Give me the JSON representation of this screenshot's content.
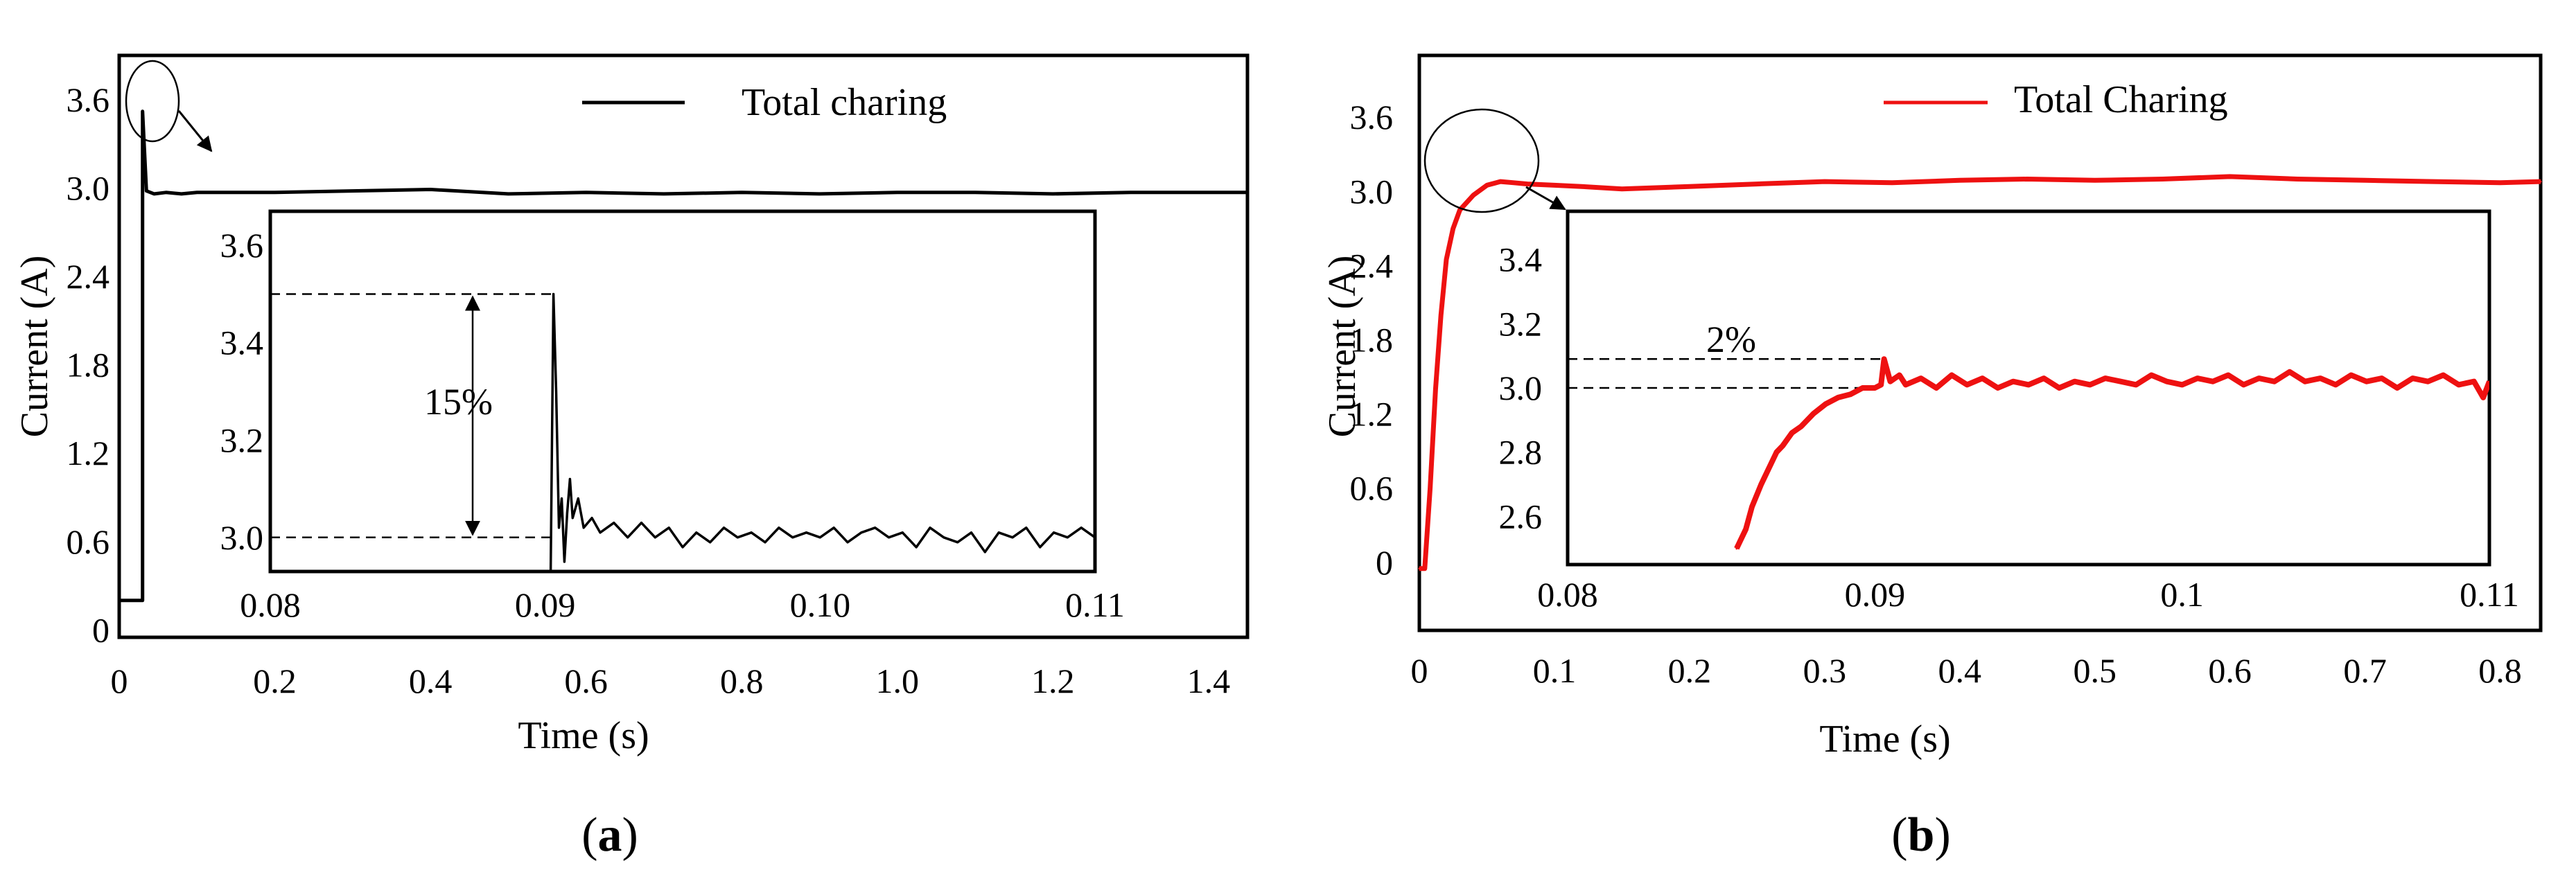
{
  "chart_data": [
    {
      "type": "line",
      "panel": "a",
      "caption_label": "(a)",
      "caption": {
        "open": "(",
        "letter": "a",
        "close": ")"
      },
      "title": "",
      "xlabel": "Time (s)",
      "ylabel": "Current (A)",
      "xlim": [
        0,
        1.45
      ],
      "ylim": [
        -0.05,
        3.9
      ],
      "xticks": [
        0,
        0.2,
        0.4,
        0.6,
        0.8,
        1.0,
        1.2,
        1.4
      ],
      "xtick_labels": [
        "0",
        "0.2",
        "0.4",
        "0.6",
        "0.8",
        "1.0",
        "1.2",
        "1.4"
      ],
      "yticks": [
        0,
        0.6,
        1.2,
        1.8,
        2.4,
        3.0,
        3.6
      ],
      "ytick_labels": [
        "0",
        "0.6",
        "1.2",
        "1.8",
        "2.4",
        "3.0",
        "3.6"
      ],
      "legend": {
        "label": "Total charing",
        "color": "#000000",
        "position": "top-center"
      },
      "series": [
        {
          "name": "Total charing",
          "color": "#000000",
          "x": [
            0,
            0.02,
            0.03,
            0.03,
            0.035,
            0.045,
            0.06,
            0.08,
            0.1,
            0.2,
            0.3,
            0.4,
            0.5,
            0.6,
            0.7,
            0.8,
            0.9,
            1.0,
            1.1,
            1.2,
            1.3,
            1.45
          ],
          "y": [
            0.2,
            0.2,
            0.2,
            3.52,
            2.98,
            2.96,
            2.97,
            2.96,
            2.97,
            2.97,
            2.98,
            2.99,
            2.96,
            2.97,
            2.96,
            2.97,
            2.96,
            2.97,
            2.97,
            2.96,
            2.97,
            2.97
          ]
        }
      ],
      "annotations": [
        {
          "type": "circle",
          "x": 0.03,
          "y": 3.35,
          "label": ""
        }
      ],
      "inset": {
        "xlim": [
          0.08,
          0.11
        ],
        "ylim": [
          2.93,
          3.67
        ],
        "xticks": [
          0.08,
          0.09,
          0.1,
          0.11
        ],
        "xtick_labels": [
          "0.08",
          "0.09",
          "0.10",
          "0.11"
        ],
        "yticks": [
          3.0,
          3.2,
          3.4,
          3.6
        ],
        "ytick_labels": [
          "3.0",
          "3.2",
          "3.4",
          "3.6"
        ],
        "annotation": "15%",
        "peak": 3.5,
        "steady": 3.0,
        "series": [
          {
            "name": "Total charing",
            "x": [
              0.0902,
              0.0903,
              0.0904,
              0.0905,
              0.0906,
              0.0907,
              0.0908,
              0.0909,
              0.091,
              0.0912,
              0.0914,
              0.0917,
              0.092,
              0.0925,
              0.093,
              0.0935,
              0.094,
              0.0945,
              0.095,
              0.0955,
              0.096,
              0.0965,
              0.097,
              0.0975,
              0.098,
              0.0985,
              0.099,
              0.0995,
              0.1,
              0.1005,
              0.101,
              0.1015,
              0.102,
              0.1025,
              0.103,
              0.1035,
              0.104,
              0.1045,
              0.105,
              0.1055,
              0.106,
              0.1065,
              0.107,
              0.1075,
              0.108,
              0.1085,
              0.109,
              0.1095,
              0.11
            ],
            "y": [
              2.93,
              3.5,
              3.3,
              3.02,
              3.08,
              2.95,
              3.05,
              3.12,
              3.04,
              3.08,
              3.02,
              3.04,
              3.01,
              3.03,
              3.0,
              3.03,
              3.0,
              3.02,
              2.98,
              3.01,
              2.99,
              3.02,
              3.0,
              3.01,
              2.99,
              3.02,
              3.0,
              3.01,
              3.0,
              3.02,
              2.99,
              3.01,
              3.02,
              3.0,
              3.01,
              2.98,
              3.02,
              3.0,
              2.99,
              3.01,
              2.97,
              3.01,
              3.0,
              3.02,
              2.98,
              3.01,
              3.0,
              3.02,
              3.0
            ]
          }
        ]
      }
    },
    {
      "type": "line",
      "panel": "b",
      "caption_label": "(b)",
      "caption": {
        "open": "(",
        "letter": "b",
        "close": ")"
      },
      "title": "",
      "xlabel": "Time (s)",
      "ylabel": "Current (A)",
      "xlim": [
        0,
        0.83
      ],
      "ylim": [
        -0.55,
        4.1
      ],
      "xticks": [
        0,
        0.1,
        0.2,
        0.3,
        0.4,
        0.5,
        0.6,
        0.7,
        0.8
      ],
      "xtick_labels": [
        "0",
        "0.1",
        "0.2",
        "0.3",
        "0.4",
        "0.5",
        "0.6",
        "0.7",
        "0.8"
      ],
      "yticks": [
        0,
        0.6,
        1.2,
        1.8,
        2.4,
        3.0,
        3.6
      ],
      "ytick_labels": [
        "0",
        "0.6",
        "1.2",
        "1.8",
        "2.4",
        "3.0",
        "3.6"
      ],
      "legend": {
        "label": "Total Charing",
        "color": "#ee1111",
        "position": "top-center"
      },
      "series": [
        {
          "name": "Total Charing",
          "color": "#ee1111",
          "x": [
            0,
            0.004,
            0.008,
            0.012,
            0.016,
            0.02,
            0.025,
            0.03,
            0.04,
            0.05,
            0.06,
            0.07,
            0.08,
            0.1,
            0.12,
            0.15,
            0.2,
            0.25,
            0.3,
            0.35,
            0.4,
            0.45,
            0.5,
            0.55,
            0.6,
            0.65,
            0.7,
            0.75,
            0.8,
            0.83
          ],
          "y": [
            -0.05,
            -0.05,
            0.6,
            1.4,
            2.0,
            2.45,
            2.7,
            2.85,
            2.97,
            3.05,
            3.08,
            3.07,
            3.06,
            3.05,
            3.04,
            3.02,
            3.04,
            3.06,
            3.08,
            3.07,
            3.09,
            3.1,
            3.09,
            3.1,
            3.12,
            3.1,
            3.09,
            3.08,
            3.07,
            3.08
          ]
        }
      ],
      "annotations": [
        {
          "type": "circle",
          "x": 0.045,
          "y": 3.05,
          "label": ""
        }
      ],
      "inset": {
        "xlim": [
          0.08,
          0.11
        ],
        "ylim": [
          2.45,
          3.55
        ],
        "xticks": [
          0.08,
          0.09,
          0.1,
          0.11
        ],
        "xtick_labels": [
          "0.08",
          "0.09",
          "0.1",
          "0.11"
        ],
        "yticks": [
          2.6,
          2.8,
          3.0,
          3.2,
          3.4
        ],
        "ytick_labels": [
          "2.6",
          "2.8",
          "3.0",
          "3.2",
          "3.4"
        ],
        "annotation": "2%",
        "peak": 3.09,
        "steady": 3.0,
        "series": [
          {
            "name": "Total Charing",
            "x": [
              0.0855,
              0.0858,
              0.086,
              0.0863,
              0.0865,
              0.0868,
              0.087,
              0.0873,
              0.0876,
              0.088,
              0.0884,
              0.0888,
              0.0892,
              0.0896,
              0.09,
              0.0902,
              0.0903,
              0.0905,
              0.0908,
              0.091,
              0.0915,
              0.092,
              0.0925,
              0.093,
              0.0935,
              0.094,
              0.0945,
              0.095,
              0.0955,
              0.096,
              0.0965,
              0.097,
              0.0975,
              0.098,
              0.0985,
              0.099,
              0.0995,
              0.1,
              0.1005,
              0.101,
              0.1015,
              0.102,
              0.1025,
              0.103,
              0.1035,
              0.104,
              0.1045,
              0.105,
              0.1055,
              0.106,
              0.1065,
              0.107,
              0.1075,
              0.108,
              0.1085,
              0.109,
              0.1095,
              0.1098,
              0.11
            ],
            "y": [
              2.5,
              2.56,
              2.63,
              2.7,
              2.74,
              2.8,
              2.82,
              2.86,
              2.88,
              2.92,
              2.95,
              2.97,
              2.98,
              3.0,
              3.0,
              3.01,
              3.09,
              3.02,
              3.04,
              3.01,
              3.03,
              3.0,
              3.04,
              3.01,
              3.03,
              3.0,
              3.02,
              3.01,
              3.03,
              3.0,
              3.02,
              3.01,
              3.03,
              3.02,
              3.01,
              3.04,
              3.02,
              3.01,
              3.03,
              3.02,
              3.04,
              3.01,
              3.03,
              3.02,
              3.05,
              3.02,
              3.03,
              3.01,
              3.04,
              3.02,
              3.03,
              3.0,
              3.03,
              3.02,
              3.04,
              3.01,
              3.02,
              2.97,
              3.02
            ]
          }
        ]
      }
    }
  ]
}
